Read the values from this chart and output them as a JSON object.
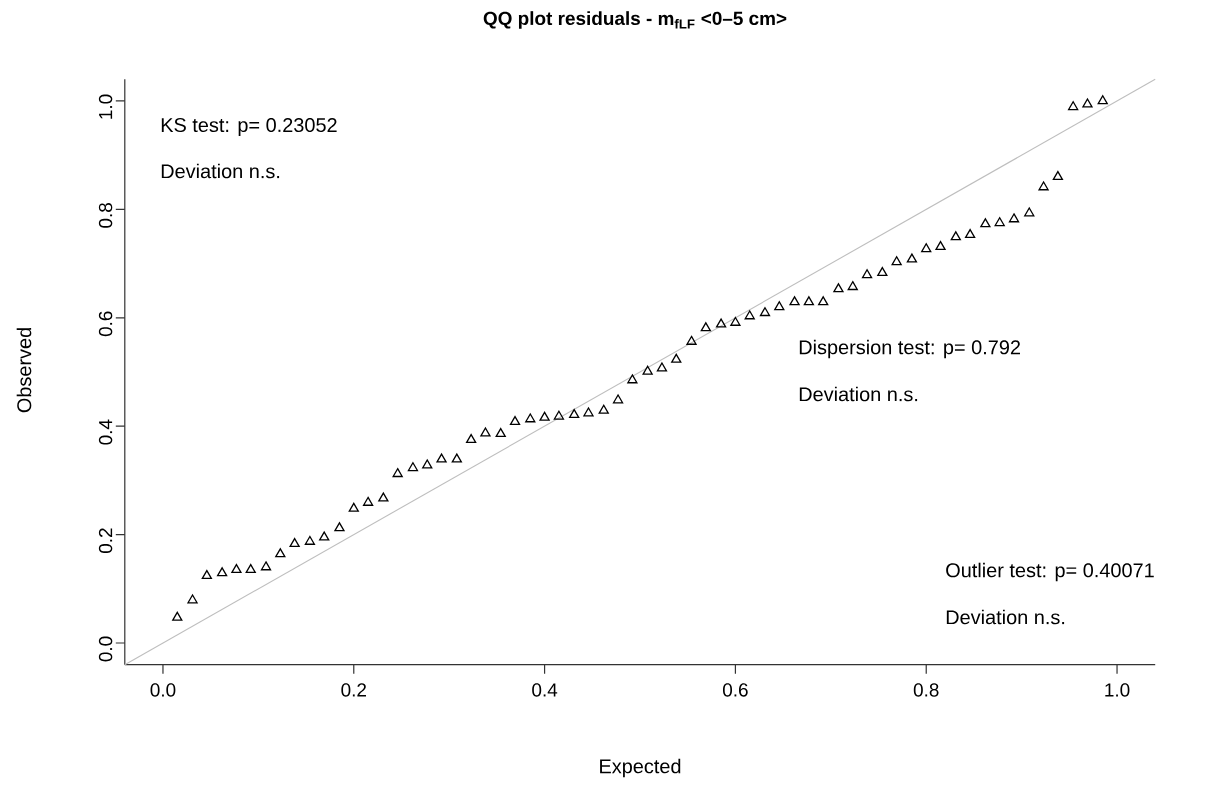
{
  "chart_data": {
    "type": "scatter",
    "title": "QQ plot residuals - m$_{fLF}$ <0–5 cm>",
    "xlabel": "Expected",
    "ylabel": "Observed",
    "xlim": [
      -0.04,
      1.04
    ],
    "ylim": [
      -0.04,
      1.04
    ],
    "xticks": [
      {
        "value": 0,
        "label": "0.0"
      },
      0.2,
      0.4,
      0.6,
      0.8,
      {
        "value": 1,
        "label": "1.0"
      }
    ],
    "yticks": [
      {
        "value": 0,
        "label": "0.0"
      },
      0.2,
      0.4,
      0.6,
      0.8,
      {
        "value": 1,
        "label": "1.0"
      }
    ],
    "series": [
      {
        "color": "#000000",
        "marker": "triangle",
        "x": [
          0.015,
          0.031,
          0.046,
          0.062,
          0.077,
          0.092,
          0.108,
          0.123,
          0.138,
          0.154,
          0.169,
          0.185,
          0.2,
          0.215,
          0.231,
          0.246,
          0.262,
          0.277,
          0.292,
          0.308,
          0.323,
          0.338,
          0.354,
          0.369,
          0.385,
          0.4,
          0.415,
          0.431,
          0.446,
          0.462,
          0.477,
          0.492,
          0.508,
          0.523,
          0.538,
          0.554,
          0.569,
          0.585,
          0.6,
          0.615,
          0.631,
          0.646,
          0.662,
          0.677,
          0.692,
          0.708,
          0.723,
          0.738,
          0.754,
          0.769,
          0.785,
          0.8,
          0.815,
          0.831,
          0.846,
          0.862,
          0.877,
          0.892,
          0.908,
          0.923,
          0.938,
          0.954,
          0.969,
          0.985
        ],
        "values": [
          0.047,
          0.079,
          0.124,
          0.129,
          0.135,
          0.135,
          0.14,
          0.164,
          0.183,
          0.187,
          0.195,
          0.212,
          0.248,
          0.259,
          0.267,
          0.312,
          0.323,
          0.328,
          0.339,
          0.339,
          0.375,
          0.387,
          0.386,
          0.408,
          0.413,
          0.416,
          0.418,
          0.421,
          0.424,
          0.429,
          0.448,
          0.485,
          0.501,
          0.507,
          0.523,
          0.556,
          0.581,
          0.588,
          0.591,
          0.603,
          0.609,
          0.62,
          0.629,
          0.629,
          0.629,
          0.653,
          0.657,
          0.679,
          0.683,
          0.703,
          0.708,
          0.727,
          0.731,
          0.749,
          0.753,
          0.773,
          0.775,
          0.782,
          0.793,
          0.841,
          0.86,
          0.989,
          0.994,
          1.0
        ]
      },
      {
        "type": "line",
        "color": "#bebebe",
        "line_style": "solid",
        "x": [
          -0.04,
          1.04
        ],
        "values": [
          -0.04,
          1.04
        ]
      }
    ],
    "annotations": [
      "KS test: p= 0.23052",
      "Deviation  n.s.",
      "Dispersion test: p= 0.792",
      "Deviation  n.s.",
      "Outlier test: p= 0.40071",
      "Deviation  n.s."
    ]
  }
}
